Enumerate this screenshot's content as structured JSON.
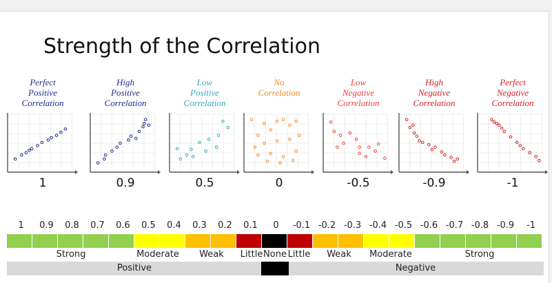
{
  "title": "Strength of the Correlation",
  "panels": [
    {
      "lines": [
        "Perfect",
        "Positive",
        "Correlation"
      ],
      "value": "1",
      "color": "#1f2a8c",
      "points": [
        [
          1,
          1.5
        ],
        [
          2,
          2.0
        ],
        [
          2.7,
          2.3
        ],
        [
          3.2,
          2.6
        ],
        [
          3.6,
          2.8
        ],
        [
          4.5,
          3.2
        ],
        [
          5.2,
          3.6
        ],
        [
          6.2,
          3.9
        ],
        [
          6.7,
          4.2
        ],
        [
          7.5,
          4.5
        ],
        [
          8.2,
          4.9
        ],
        [
          8.9,
          5.3
        ]
      ]
    },
    {
      "lines": [
        "High",
        "Positive",
        "Correlation"
      ],
      "value": "0.9",
      "color": "#1f2a8c",
      "points": [
        [
          1,
          1.0
        ],
        [
          2,
          1.5
        ],
        [
          2.2,
          2.0
        ],
        [
          3.2,
          2.5
        ],
        [
          4,
          3.0
        ],
        [
          4.5,
          3.5
        ],
        [
          5.8,
          3.9
        ],
        [
          6.2,
          4.4
        ],
        [
          7,
          4.1
        ],
        [
          7.5,
          5.0
        ],
        [
          8.1,
          5.6
        ],
        [
          8.5,
          6.5
        ],
        [
          8.3,
          6.0
        ],
        [
          9,
          5.8
        ]
      ]
    },
    {
      "lines": [
        "Low",
        "Positive",
        "Correlation"
      ],
      "value": "0.5",
      "color": "#3aa6b9",
      "points": [
        [
          1,
          2.8
        ],
        [
          1.5,
          1.5
        ],
        [
          2.5,
          2.0
        ],
        [
          3.2,
          2.7
        ],
        [
          3.5,
          1.8
        ],
        [
          4.5,
          3.6
        ],
        [
          5.5,
          2.5
        ],
        [
          6,
          4.0
        ],
        [
          7.2,
          3.0
        ],
        [
          7.5,
          4.5
        ],
        [
          8.2,
          6.3
        ],
        [
          9,
          5.5
        ]
      ]
    },
    {
      "lines": [
        "No",
        "Correlation"
      ],
      "value": "0",
      "color": "#f08a20",
      "points": [
        [
          1,
          6.5
        ],
        [
          2,
          4.5
        ],
        [
          3,
          6.0
        ],
        [
          4,
          5.2
        ],
        [
          5,
          6.3
        ],
        [
          6,
          6.5
        ],
        [
          7,
          5.8
        ],
        [
          8,
          6.3
        ],
        [
          1.5,
          3.0
        ],
        [
          3,
          3.5
        ],
        [
          5,
          3.8
        ],
        [
          7,
          4.0
        ],
        [
          8.5,
          4.5
        ],
        [
          2,
          2.0
        ],
        [
          4,
          2.2
        ],
        [
          6,
          1.8
        ],
        [
          8,
          2.5
        ],
        [
          3.5,
          1.2
        ],
        [
          5.5,
          1.0
        ],
        [
          7.5,
          1.3
        ]
      ]
    },
    {
      "lines": [
        "Low",
        "Negative",
        "Correlation"
      ],
      "value": "-0.5",
      "color": "#e8433a",
      "points": [
        [
          1,
          6.2
        ],
        [
          1.5,
          5.0
        ],
        [
          2.5,
          4.5
        ],
        [
          3,
          3.5
        ],
        [
          2,
          3.0
        ],
        [
          4,
          4.8
        ],
        [
          5,
          4.0
        ],
        [
          5.5,
          3.0
        ],
        [
          5.5,
          2.2
        ],
        [
          6.5,
          1.8
        ],
        [
          7,
          3.0
        ],
        [
          8,
          2.5
        ],
        [
          8.5,
          3.4
        ],
        [
          9.5,
          1.6
        ]
      ]
    },
    {
      "lines": [
        "High",
        "Negative",
        "Correlation"
      ],
      "value": "-0.9",
      "color": "#d21f1f",
      "points": [
        [
          1,
          6.5
        ],
        [
          1.5,
          5.5
        ],
        [
          2,
          5.8
        ],
        [
          2.2,
          4.8
        ],
        [
          2.6,
          4.4
        ],
        [
          3,
          3.8
        ],
        [
          3.5,
          3.6
        ],
        [
          4.5,
          3.3
        ],
        [
          5,
          2.7
        ],
        [
          5.5,
          3.0
        ],
        [
          6.5,
          2.4
        ],
        [
          7,
          2.0
        ],
        [
          8,
          1.7
        ],
        [
          9,
          1.5
        ],
        [
          8.5,
          1.2
        ]
      ]
    },
    {
      "lines": [
        "Perfect",
        "Negative",
        "Correlation"
      ],
      "value": "-1",
      "color": "#d21f1f",
      "points": [
        [
          2,
          6.5
        ],
        [
          2.4,
          6.2
        ],
        [
          2.8,
          6.0
        ],
        [
          3.2,
          5.8
        ],
        [
          3.6,
          5.4
        ],
        [
          4,
          5.0
        ],
        [
          5,
          4.3
        ],
        [
          6,
          3.6
        ],
        [
          6.5,
          3.2
        ],
        [
          7,
          2.8
        ],
        [
          8,
          2.3
        ],
        [
          9,
          1.8
        ],
        [
          9.5,
          1.3
        ]
      ]
    }
  ],
  "label_color": "#222222",
  "scale_numbers": [
    "1",
    "0.9",
    "0.8",
    "0.7",
    "0.6",
    "0.5",
    "0.4",
    "0.3",
    "0.2",
    "0.1",
    "0",
    "-0.1",
    "-0.2",
    "-0.3",
    "-0.4",
    "-0.5",
    "-0.6",
    "-0.7",
    "-0.8",
    "-0.9",
    "-1"
  ],
  "bar_colors": [
    "#92d050",
    "#92d050",
    "#92d050",
    "#92d050",
    "#92d050",
    "#ffff00",
    "#ffff00",
    "#ffc000",
    "#ffc000",
    "#c00000",
    "#000000",
    "#c00000",
    "#ffc000",
    "#ffc000",
    "#ffff00",
    "#ffff00",
    "#92d050",
    "#92d050",
    "#92d050",
    "#92d050",
    "#92d050"
  ],
  "strength_labels": [
    "Strong",
    "Moderate",
    "Weak",
    "Little",
    "None",
    "Little",
    "Weak",
    "Moderate",
    "Strong"
  ],
  "direction": {
    "positive": "Positive",
    "negative": "Negative"
  },
  "direction_colors": {
    "side": "#d9d9d9",
    "center": "#000000"
  }
}
